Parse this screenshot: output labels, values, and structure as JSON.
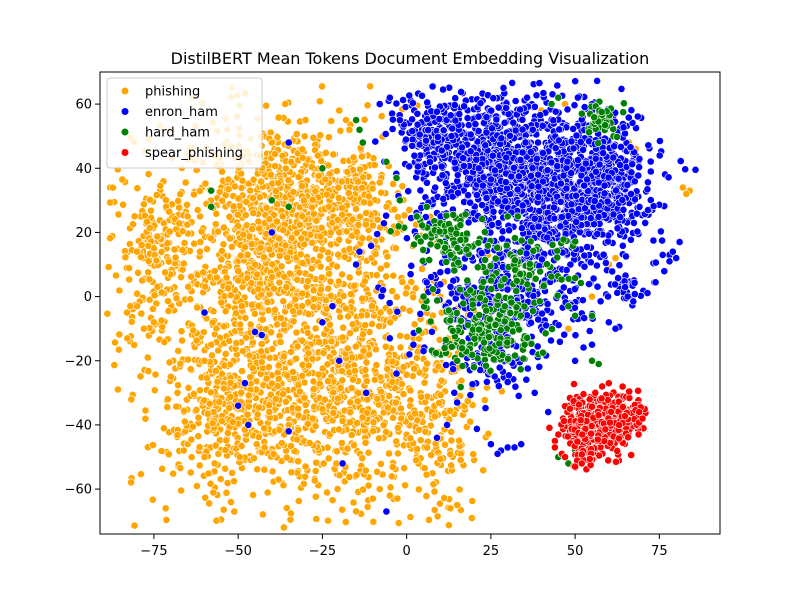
{
  "chart_data": {
    "type": "scatter",
    "title": "DistilBERT Mean Tokens Document Embedding Visualization",
    "xlabel": "",
    "ylabel": "",
    "xlim": [
      -91,
      93
    ],
    "ylim": [
      -74,
      70
    ],
    "x_ticks": [
      -75,
      -50,
      -25,
      0,
      25,
      50,
      75
    ],
    "y_ticks": [
      -60,
      -40,
      -20,
      0,
      20,
      40,
      60
    ],
    "grid": false,
    "legend_position": "top-left",
    "series": [
      {
        "name": "phishing",
        "color": "#ffa500",
        "clusters": [
          {
            "cx": -40,
            "cy": 0,
            "sx": 20,
            "sy": 30,
            "n": 1300
          },
          {
            "cx": -12,
            "cy": -28,
            "sx": 14,
            "sy": 18,
            "n": 600
          },
          {
            "cx": -52,
            "cy": -38,
            "sx": 10,
            "sy": 10,
            "n": 250
          },
          {
            "cx": -18,
            "cy": 30,
            "sx": 8,
            "sy": 9,
            "n": 200
          },
          {
            "cx": -75,
            "cy": 15,
            "sx": 6,
            "sy": 9,
            "n": 120
          },
          {
            "cx": -40,
            "cy": 25,
            "sx": 12,
            "sy": 12,
            "n": 300
          },
          {
            "cx": 10,
            "cy": -45,
            "sx": 6,
            "sy": 12,
            "n": 100
          }
        ],
        "points": [
          [
            -82,
            -3
          ],
          [
            -83,
            -5
          ],
          [
            -80,
            -3
          ],
          [
            -30,
            55
          ],
          [
            -18,
            55
          ],
          [
            -20,
            58
          ],
          [
            -43,
            47
          ],
          [
            -40,
            48
          ],
          [
            -62,
            27
          ],
          [
            -65,
            25
          ],
          [
            82,
            34
          ],
          [
            84,
            33
          ],
          [
            83,
            32
          ],
          [
            13,
            -66
          ],
          [
            15,
            -65
          ],
          [
            -5,
            -62
          ],
          [
            -8,
            -60
          ],
          [
            -10,
            -63
          ],
          [
            -30,
            -53
          ],
          [
            -38,
            -57
          ],
          [
            -60,
            -50
          ],
          [
            -57,
            -52
          ],
          [
            -75,
            -8
          ],
          [
            -78,
            -10
          ],
          [
            10,
            0
          ],
          [
            8,
            5
          ],
          [
            55,
            0
          ],
          [
            48,
            -10
          ],
          [
            45,
            55
          ],
          [
            47,
            60
          ],
          [
            40,
            58
          ],
          [
            28,
            5
          ],
          [
            30,
            -5
          ],
          [
            68,
            46
          ],
          [
            66,
            48
          ],
          [
            60,
            10
          ],
          [
            62,
            12
          ],
          [
            -60,
            -20
          ],
          [
            -58,
            -15
          ],
          [
            -70,
            -25
          ],
          [
            -68,
            -30
          ],
          [
            -35,
            -40
          ],
          [
            -25,
            -35
          ],
          [
            -45,
            10
          ],
          [
            -50,
            5
          ],
          [
            -20,
            20
          ],
          [
            -15,
            15
          ]
        ]
      },
      {
        "name": "enron_ham",
        "color": "#0000ff",
        "clusters": [
          {
            "cx": 40,
            "cy": 35,
            "sx": 14,
            "sy": 13,
            "n": 1200
          },
          {
            "cx": 20,
            "cy": 45,
            "sx": 10,
            "sy": 10,
            "n": 300
          },
          {
            "cx": 58,
            "cy": 35,
            "sx": 8,
            "sy": 9,
            "n": 300
          },
          {
            "cx": 30,
            "cy": 0,
            "sx": 12,
            "sy": 9,
            "n": 300
          },
          {
            "cx": 8,
            "cy": 52,
            "sx": 5,
            "sy": 6,
            "n": 150
          },
          {
            "cx": 25,
            "cy": -20,
            "sx": 6,
            "sy": 6,
            "n": 80
          },
          {
            "cx": 65,
            "cy": 3,
            "sx": 3,
            "sy": 2,
            "n": 40
          }
        ],
        "points": [
          [
            -6,
            -67
          ],
          [
            -8,
            60
          ],
          [
            -5,
            62
          ],
          [
            -2,
            55
          ],
          [
            78,
            13
          ],
          [
            80,
            12
          ],
          [
            76,
            13
          ],
          [
            78,
            11
          ],
          [
            79,
            14
          ],
          [
            81,
            17
          ],
          [
            -19,
            -52
          ],
          [
            -45,
            -11
          ],
          [
            -43,
            -12
          ],
          [
            -60,
            -5
          ],
          [
            -48,
            -27
          ],
          [
            -35,
            -42
          ],
          [
            -22,
            -3
          ],
          [
            -25,
            -8
          ],
          [
            -15,
            10
          ],
          [
            -14,
            14
          ],
          [
            -7,
            2
          ],
          [
            -5,
            -13
          ],
          [
            -3,
            -24
          ],
          [
            30,
            -47
          ],
          [
            28,
            -48
          ],
          [
            32,
            -47
          ],
          [
            25,
            -46
          ],
          [
            34,
            -46
          ],
          [
            27,
            -49
          ],
          [
            42,
            -36
          ],
          [
            38,
            -30
          ],
          [
            15,
            -33
          ],
          [
            12,
            -40
          ],
          [
            9,
            -44
          ],
          [
            -50,
            -34
          ],
          [
            -47,
            -40
          ],
          [
            -20,
            -20
          ],
          [
            -12,
            -30
          ],
          [
            2,
            -15
          ],
          [
            5,
            -17
          ],
          [
            62,
            -10
          ],
          [
            60,
            -8
          ],
          [
            55,
            -15
          ],
          [
            50,
            -20
          ],
          [
            -40,
            20
          ],
          [
            -35,
            48
          ]
        ]
      },
      {
        "name": "hard_ham",
        "color": "#008000",
        "clusters": [
          {
            "cx": 22,
            "cy": -10,
            "sx": 8,
            "sy": 6,
            "n": 180
          },
          {
            "cx": 12,
            "cy": 18,
            "sx": 6,
            "sy": 5,
            "n": 100
          },
          {
            "cx": 35,
            "cy": 8,
            "sx": 8,
            "sy": 6,
            "n": 80
          },
          {
            "cx": 58,
            "cy": 55,
            "sx": 3,
            "sy": 3,
            "n": 40
          }
        ],
        "points": [
          [
            -58,
            33
          ],
          [
            -58,
            28
          ],
          [
            -40,
            30
          ],
          [
            -35,
            28
          ],
          [
            -25,
            40
          ],
          [
            -14,
            52
          ],
          [
            -15,
            55
          ],
          [
            -13,
            48
          ],
          [
            45,
            62
          ],
          [
            43,
            60
          ],
          [
            52,
            57
          ],
          [
            48,
            -3
          ],
          [
            50,
            -6
          ],
          [
            55,
            -6
          ],
          [
            -6,
            42
          ],
          [
            -3,
            37
          ],
          [
            -2,
            30
          ],
          [
            45,
            -50
          ],
          [
            48,
            -52
          ],
          [
            50,
            -48
          ],
          [
            57,
            -21
          ],
          [
            55,
            -20
          ],
          [
            35,
            -15
          ],
          [
            15,
            -20
          ],
          [
            20,
            -22
          ],
          [
            5,
            0
          ],
          [
            3,
            25
          ],
          [
            6,
            28
          ],
          [
            30,
            25
          ],
          [
            33,
            25
          ],
          [
            25,
            5
          ],
          [
            18,
            5
          ]
        ]
      },
      {
        "name": "spear_phishing",
        "color": "#ff0000",
        "clusters": [
          {
            "cx": 57,
            "cy": -40,
            "sx": 5,
            "sy": 5,
            "n": 380
          },
          {
            "cx": 66,
            "cy": -38,
            "sx": 3,
            "sy": 3,
            "n": 60
          },
          {
            "cx": 52,
            "cy": -48,
            "sx": 2,
            "sy": 3,
            "n": 40
          }
        ],
        "points": [
          [
            44,
            -45
          ],
          [
            45,
            -43
          ],
          [
            44,
            -47
          ],
          [
            47,
            -50
          ],
          [
            50,
            -53
          ],
          [
            52,
            -52
          ],
          [
            58,
            -28
          ],
          [
            60,
            -27
          ],
          [
            56,
            -30
          ],
          [
            69,
            -36
          ],
          [
            70,
            -38
          ]
        ]
      }
    ]
  }
}
